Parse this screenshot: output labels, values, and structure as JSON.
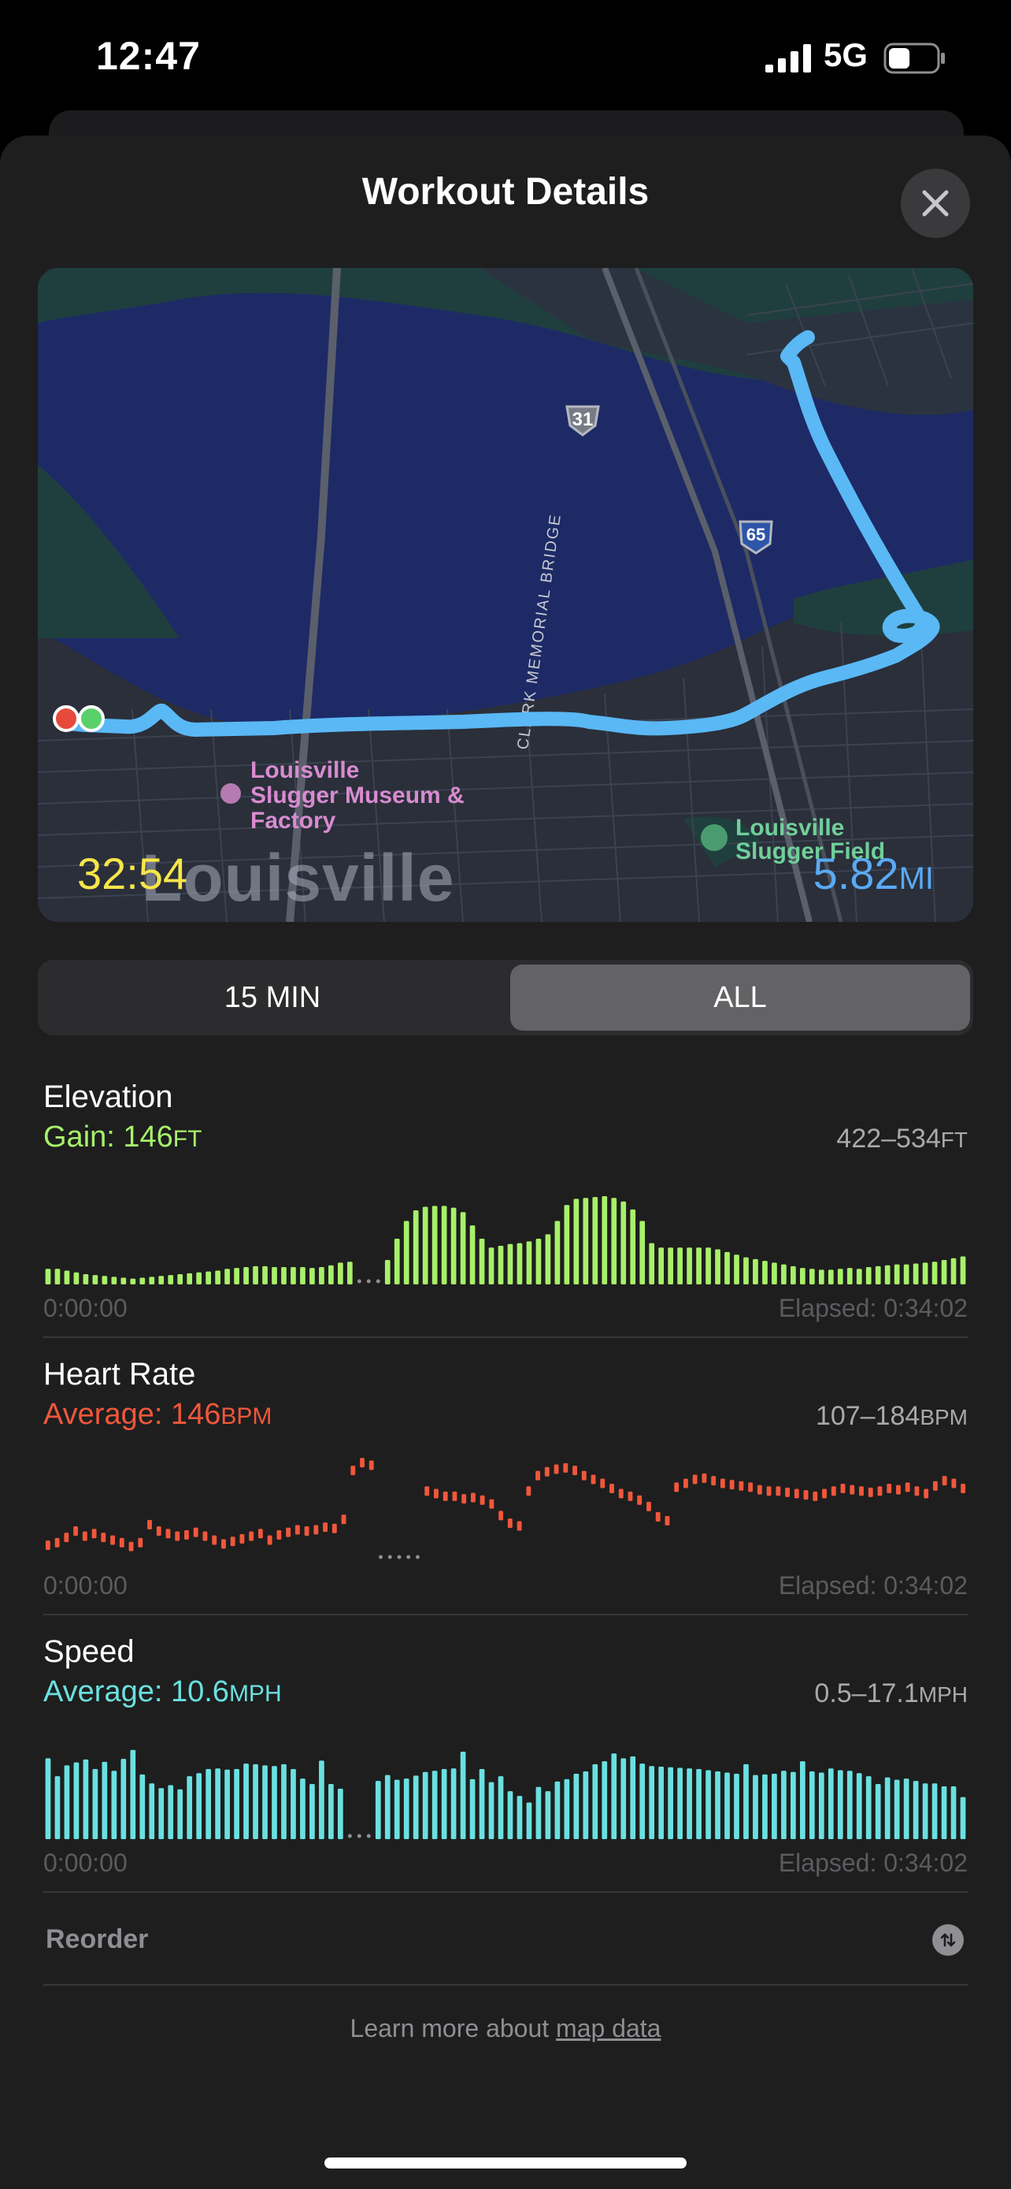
{
  "status_bar": {
    "time": "12:47",
    "network": "5G",
    "battery_level": 0.45
  },
  "sheet": {
    "title": "Workout Details",
    "close_icon": "xmark-icon"
  },
  "map": {
    "duration": "32:54",
    "distance_value": "5.82",
    "distance_unit": "MI",
    "city_label": "Louisville",
    "poi_museum_lines": [
      "Louisville",
      "Slugger Museum &",
      "Factory"
    ],
    "poi_field_lines": [
      "Louisville",
      "Slugger Field"
    ],
    "road_labels": [
      "31",
      "65",
      "CLARK MEMORIAL BRIDGE"
    ],
    "colors": {
      "route": "#5ab8f5",
      "start": "#e64a3c",
      "end": "#5ad06b",
      "water": "#1d2a66",
      "land": "#1f3f3e"
    }
  },
  "segmented": {
    "options": [
      "15 MIN",
      "ALL"
    ],
    "selected": "ALL"
  },
  "metrics": [
    {
      "name": "Elevation",
      "summary_label": "Gain: 146",
      "summary_unit": "FT",
      "range": "422–534",
      "range_unit": "FT",
      "start_time": "0:00:00",
      "end_time": "Elapsed: 0:34:02",
      "color": "#a8f06a"
    },
    {
      "name": "Heart Rate",
      "summary_label": "Average: 146",
      "summary_unit": "BPM",
      "range": "107–184",
      "range_unit": "BPM",
      "start_time": "0:00:00",
      "end_time": "Elapsed: 0:34:02",
      "color": "#f0573b"
    },
    {
      "name": "Speed",
      "summary_label": "Average: 10.6",
      "summary_unit": "MPH",
      "range": "0.5–17.1",
      "range_unit": "MPH",
      "start_time": "0:00:00",
      "end_time": "Elapsed: 0:34:02",
      "color": "#6be0e0"
    }
  ],
  "chart_data": [
    {
      "type": "bar",
      "title": "Elevation",
      "ylabel": "FT",
      "ylim": [
        422,
        534
      ],
      "values": [
        436,
        436,
        434,
        432,
        430,
        429,
        428,
        427,
        426,
        425,
        426,
        427,
        428,
        429,
        430,
        431,
        432,
        433,
        434,
        436,
        437,
        438,
        439,
        439,
        438,
        438,
        438,
        438,
        437,
        438,
        440,
        443,
        444,
        null,
        null,
        null,
        446,
        470,
        490,
        502,
        506,
        507,
        507,
        505,
        500,
        485,
        470,
        460,
        462,
        464,
        465,
        467,
        470,
        475,
        490,
        508,
        515,
        516,
        517,
        518,
        516,
        512,
        503,
        490,
        465,
        460,
        460,
        460,
        460,
        460,
        460,
        458,
        455,
        452,
        449,
        447,
        445,
        443,
        441,
        439,
        437,
        436,
        435,
        435,
        436,
        437,
        436,
        438,
        439,
        440,
        441,
        441,
        442,
        443,
        444,
        446,
        448,
        450
      ],
      "gaps": [
        33,
        34,
        35
      ]
    },
    {
      "type": "scatter",
      "title": "Heart Rate",
      "ylabel": "BPM",
      "ylim": [
        107,
        184
      ],
      "values": [
        118,
        120,
        124,
        129,
        125,
        127,
        124,
        122,
        120,
        117,
        120,
        134,
        129,
        127,
        125,
        126,
        128,
        125,
        122,
        119,
        121,
        123,
        125,
        127,
        122,
        126,
        128,
        130,
        129,
        130,
        132,
        131,
        138,
        176,
        182,
        180,
        null,
        null,
        null,
        null,
        null,
        160,
        158,
        156,
        156,
        154,
        155,
        153,
        150,
        141,
        135,
        133,
        160,
        172,
        175,
        177,
        178,
        176,
        172,
        169,
        166,
        162,
        158,
        156,
        153,
        148,
        140,
        137,
        163,
        166,
        169,
        170,
        168,
        166,
        165,
        164,
        163,
        161,
        160,
        160,
        159,
        158,
        157,
        156,
        158,
        160,
        162,
        161,
        160,
        159,
        160,
        162,
        161,
        163,
        160,
        158,
        164,
        168,
        166,
        162
      ],
      "gaps": [
        36,
        37,
        38,
        39,
        40
      ]
    },
    {
      "type": "bar",
      "title": "Speed",
      "ylabel": "MPH",
      "ylim": [
        0.5,
        17.1
      ],
      "values": [
        13.5,
        10.5,
        12.3,
        12.8,
        13.3,
        11.7,
        12.9,
        11.4,
        13.4,
        14.9,
        10.8,
        9.3,
        8.5,
        9.0,
        8.3,
        10.5,
        11.0,
        11.7,
        11.8,
        11.6,
        11.7,
        12.6,
        12.5,
        12.3,
        12.2,
        12.5,
        11.7,
        10.1,
        9.2,
        13.1,
        9.2,
        8.4,
        null,
        null,
        null,
        9.7,
        10.7,
        9.9,
        10.1,
        10.6,
        11.2,
        11.4,
        11.7,
        11.8,
        14.6,
        10.0,
        11.7,
        9.5,
        10.5,
        8.0,
        7.2,
        6.1,
        8.7,
        8.0,
        9.6,
        10.0,
        10.9,
        11.3,
        12.5,
        13.0,
        14.3,
        13.5,
        13.8,
        12.6,
        12.2,
        12.1,
        12.0,
        11.9,
        11.8,
        11.7,
        11.5,
        11.3,
        11.1,
        10.9,
        12.5,
        10.7,
        10.8,
        10.9,
        11.4,
        11.2,
        13.0,
        11.3,
        11.1,
        11.8,
        11.5,
        11.4,
        11.0,
        10.5,
        9.2,
        10.3,
        9.9,
        10.1,
        9.7,
        9.3,
        9.3,
        8.8,
        8.8,
        7.0
      ],
      "gaps": [
        32,
        33,
        34
      ]
    }
  ],
  "reorder": {
    "label": "Reorder",
    "icon": "arrow-up-arrow-down-icon"
  },
  "footer": {
    "prefix": "Learn more about ",
    "link": "map data"
  }
}
